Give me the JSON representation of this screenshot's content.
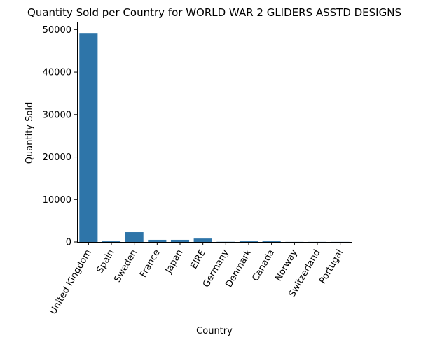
{
  "chart_data": {
    "type": "bar",
    "title": "Quantity Sold per Country for WORLD WAR 2 GLIDERS ASSTD DESIGNS",
    "xlabel": "Country",
    "ylabel": "Quantity Sold",
    "categories": [
      "United Kingdom",
      "Spain",
      "Sweden",
      "France",
      "Japan",
      "EIRE",
      "Germany",
      "Denmark",
      "Canada",
      "Norway",
      "Switzerland",
      "Portugal"
    ],
    "values": [
      49200,
      150,
      2300,
      500,
      500,
      800,
      40,
      150,
      150,
      20,
      20,
      20
    ],
    "yticks": [
      0,
      10000,
      20000,
      30000,
      40000,
      50000
    ],
    "ytick_labels": [
      "0",
      "10000",
      "20000",
      "30000",
      "40000",
      "50000"
    ],
    "ylim": [
      0,
      51700
    ],
    "bar_color": "#2e75a9",
    "grid": false,
    "legend": "none"
  }
}
